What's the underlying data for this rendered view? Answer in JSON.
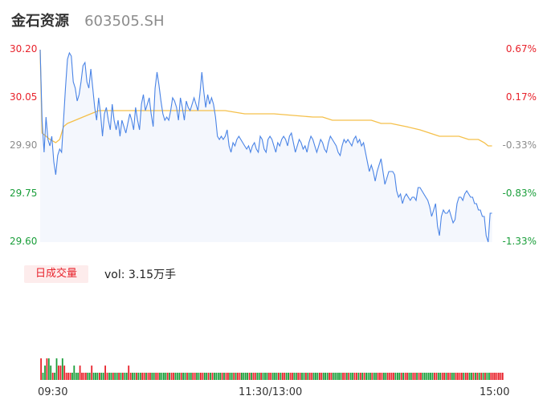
{
  "header": {
    "name": "金石资源",
    "code": "603505.SH"
  },
  "chart_data": {
    "type": "line",
    "price_axis": {
      "ticks": [
        "30.20",
        "30.05",
        "29.90",
        "29.75",
        "29.60"
      ],
      "ylim": [
        29.6,
        30.2
      ],
      "pct_ticks": [
        "0.67%",
        "0.17%",
        "-0.33%",
        "-0.83%",
        "-1.33%"
      ],
      "pct_colors": [
        "#e8222b",
        "#e8222b",
        "#8c8c8c",
        "#1a9e3a",
        "#1a9e3a"
      ],
      "price_colors": [
        "#e8222b",
        "#e8222b",
        "#8c8c8c",
        "#1a9e3a",
        "#1a9e3a"
      ]
    },
    "x_ticks": [
      "09:30",
      "11:30/13:00",
      "15:00"
    ],
    "minutes_total": 240,
    "series": [
      {
        "kind": "price",
        "color": "#4a84e6",
        "points": [
          [
            0,
            30.2
          ],
          [
            1,
            29.98
          ],
          [
            2,
            29.88
          ],
          [
            3,
            29.99
          ],
          [
            4,
            29.92
          ],
          [
            5,
            29.9
          ],
          [
            6,
            29.93
          ],
          [
            7,
            29.85
          ],
          [
            8,
            29.81
          ],
          [
            9,
            29.87
          ],
          [
            10,
            29.89
          ],
          [
            11,
            29.88
          ],
          [
            12,
            29.98
          ],
          [
            13,
            30.08
          ],
          [
            14,
            30.17
          ],
          [
            15,
            30.19
          ],
          [
            16,
            30.18
          ],
          [
            17,
            30.1
          ],
          [
            18,
            30.08
          ],
          [
            19,
            30.04
          ],
          [
            20,
            30.06
          ],
          [
            21,
            30.1
          ],
          [
            22,
            30.15
          ],
          [
            23,
            30.16
          ],
          [
            24,
            30.1
          ],
          [
            25,
            30.08
          ],
          [
            26,
            30.14
          ],
          [
            27,
            30.08
          ],
          [
            28,
            30.02
          ],
          [
            29,
            29.98
          ],
          [
            30,
            30.05
          ],
          [
            31,
            30.0
          ],
          [
            32,
            29.93
          ],
          [
            33,
            30.0
          ],
          [
            34,
            30.02
          ],
          [
            35,
            29.98
          ],
          [
            36,
            29.95
          ],
          [
            37,
            30.03
          ],
          [
            38,
            29.98
          ],
          [
            39,
            29.95
          ],
          [
            40,
            29.98
          ],
          [
            41,
            29.93
          ],
          [
            42,
            29.98
          ],
          [
            43,
            29.96
          ],
          [
            44,
            29.94
          ],
          [
            45,
            29.97
          ],
          [
            46,
            30.0
          ],
          [
            47,
            29.98
          ],
          [
            48,
            29.95
          ],
          [
            49,
            30.02
          ],
          [
            50,
            29.98
          ],
          [
            51,
            29.95
          ],
          [
            52,
            30.03
          ],
          [
            53,
            30.06
          ],
          [
            54,
            30.01
          ],
          [
            55,
            30.03
          ],
          [
            56,
            30.05
          ],
          [
            57,
            30.0
          ],
          [
            58,
            29.96
          ],
          [
            59,
            30.08
          ],
          [
            60,
            30.13
          ],
          [
            61,
            30.09
          ],
          [
            62,
            30.04
          ],
          [
            63,
            30.0
          ],
          [
            64,
            29.98
          ],
          [
            65,
            29.99
          ],
          [
            66,
            29.98
          ],
          [
            67,
            30.01
          ],
          [
            68,
            30.05
          ],
          [
            69,
            30.04
          ],
          [
            70,
            30.02
          ],
          [
            71,
            29.98
          ],
          [
            72,
            30.05
          ],
          [
            73,
            30.02
          ],
          [
            74,
            29.98
          ],
          [
            75,
            30.04
          ],
          [
            76,
            30.02
          ],
          [
            77,
            30.01
          ],
          [
            78,
            30.03
          ],
          [
            79,
            30.05
          ],
          [
            80,
            30.03
          ],
          [
            81,
            30.01
          ],
          [
            82,
            30.06
          ],
          [
            83,
            30.13
          ],
          [
            84,
            30.07
          ],
          [
            85,
            30.02
          ],
          [
            86,
            30.06
          ],
          [
            87,
            30.03
          ],
          [
            88,
            30.05
          ],
          [
            89,
            30.03
          ],
          [
            90,
            29.99
          ],
          [
            91,
            29.93
          ],
          [
            92,
            29.92
          ],
          [
            93,
            29.93
          ],
          [
            94,
            29.92
          ],
          [
            95,
            29.93
          ],
          [
            96,
            29.95
          ],
          [
            97,
            29.9
          ],
          [
            98,
            29.88
          ],
          [
            99,
            29.91
          ],
          [
            100,
            29.9
          ],
          [
            101,
            29.92
          ],
          [
            102,
            29.93
          ],
          [
            103,
            29.92
          ],
          [
            104,
            29.91
          ],
          [
            105,
            29.9
          ],
          [
            106,
            29.89
          ],
          [
            107,
            29.9
          ],
          [
            108,
            29.88
          ],
          [
            109,
            29.9
          ],
          [
            110,
            29.91
          ],
          [
            111,
            29.89
          ],
          [
            112,
            29.88
          ],
          [
            113,
            29.93
          ],
          [
            114,
            29.92
          ],
          [
            115,
            29.89
          ],
          [
            116,
            29.88
          ],
          [
            117,
            29.92
          ],
          [
            118,
            29.93
          ],
          [
            119,
            29.92
          ],
          [
            120,
            29.9
          ],
          [
            121,
            29.88
          ],
          [
            122,
            29.91
          ],
          [
            123,
            29.9
          ],
          [
            124,
            29.92
          ],
          [
            125,
            29.93
          ],
          [
            126,
            29.92
          ],
          [
            127,
            29.9
          ],
          [
            128,
            29.93
          ],
          [
            129,
            29.94
          ],
          [
            130,
            29.91
          ],
          [
            131,
            29.88
          ],
          [
            132,
            29.9
          ],
          [
            133,
            29.92
          ],
          [
            134,
            29.91
          ],
          [
            135,
            29.89
          ],
          [
            136,
            29.9
          ],
          [
            137,
            29.88
          ],
          [
            138,
            29.91
          ],
          [
            139,
            29.93
          ],
          [
            140,
            29.92
          ],
          [
            141,
            29.9
          ],
          [
            142,
            29.88
          ],
          [
            143,
            29.9
          ],
          [
            144,
            29.92
          ],
          [
            145,
            29.91
          ],
          [
            146,
            29.89
          ],
          [
            147,
            29.88
          ],
          [
            148,
            29.91
          ],
          [
            149,
            29.93
          ],
          [
            150,
            29.92
          ],
          [
            151,
            29.91
          ],
          [
            152,
            29.9
          ],
          [
            153,
            29.88
          ],
          [
            154,
            29.87
          ],
          [
            155,
            29.9
          ],
          [
            156,
            29.92
          ],
          [
            157,
            29.91
          ],
          [
            158,
            29.92
          ],
          [
            159,
            29.91
          ],
          [
            160,
            29.9
          ],
          [
            161,
            29.92
          ],
          [
            162,
            29.93
          ],
          [
            163,
            29.91
          ],
          [
            164,
            29.92
          ],
          [
            165,
            29.9
          ],
          [
            166,
            29.91
          ],
          [
            167,
            29.88
          ],
          [
            168,
            29.85
          ],
          [
            169,
            29.82
          ],
          [
            170,
            29.84
          ],
          [
            171,
            29.82
          ],
          [
            172,
            29.79
          ],
          [
            173,
            29.82
          ],
          [
            174,
            29.84
          ],
          [
            175,
            29.86
          ],
          [
            176,
            29.82
          ],
          [
            177,
            29.78
          ],
          [
            178,
            29.8
          ],
          [
            179,
            29.82
          ],
          [
            180,
            29.82
          ],
          [
            181,
            29.82
          ],
          [
            182,
            29.81
          ],
          [
            183,
            29.76
          ],
          [
            184,
            29.74
          ],
          [
            185,
            29.75
          ],
          [
            186,
            29.72
          ],
          [
            187,
            29.74
          ],
          [
            188,
            29.75
          ],
          [
            189,
            29.74
          ],
          [
            190,
            29.73
          ],
          [
            191,
            29.74
          ],
          [
            192,
            29.74
          ],
          [
            193,
            29.73
          ],
          [
            194,
            29.77
          ],
          [
            195,
            29.77
          ],
          [
            196,
            29.76
          ],
          [
            197,
            29.75
          ],
          [
            198,
            29.74
          ],
          [
            199,
            29.73
          ],
          [
            200,
            29.71
          ],
          [
            201,
            29.68
          ],
          [
            202,
            29.7
          ],
          [
            203,
            29.72
          ],
          [
            204,
            29.65
          ],
          [
            205,
            29.62
          ],
          [
            206,
            29.68
          ],
          [
            207,
            29.7
          ],
          [
            208,
            29.69
          ],
          [
            209,
            29.69
          ],
          [
            210,
            29.7
          ],
          [
            211,
            29.68
          ],
          [
            212,
            29.66
          ],
          [
            213,
            29.67
          ],
          [
            214,
            29.72
          ],
          [
            215,
            29.74
          ],
          [
            216,
            29.74
          ],
          [
            217,
            29.73
          ],
          [
            218,
            29.75
          ],
          [
            219,
            29.76
          ],
          [
            220,
            29.75
          ],
          [
            221,
            29.74
          ],
          [
            222,
            29.74
          ],
          [
            223,
            29.72
          ],
          [
            224,
            29.72
          ],
          [
            225,
            29.7
          ],
          [
            226,
            29.7
          ],
          [
            227,
            29.68
          ],
          [
            228,
            29.68
          ],
          [
            229,
            29.62
          ],
          [
            230,
            29.6
          ],
          [
            231,
            29.69
          ],
          [
            232,
            29.69
          ]
        ]
      },
      {
        "kind": "average",
        "color": "#f5c04a",
        "points": [
          [
            0,
            30.2
          ],
          [
            1,
            29.94
          ],
          [
            3,
            29.93
          ],
          [
            5,
            29.92
          ],
          [
            8,
            29.91
          ],
          [
            10,
            29.92
          ],
          [
            12,
            29.96
          ],
          [
            14,
            29.97
          ],
          [
            18,
            29.98
          ],
          [
            22,
            29.99
          ],
          [
            26,
            30.0
          ],
          [
            30,
            30.01
          ],
          [
            60,
            30.01
          ],
          [
            95,
            30.01
          ],
          [
            105,
            30.0
          ],
          [
            120,
            30.0
          ],
          [
            140,
            29.99
          ],
          [
            145,
            29.99
          ],
          [
            150,
            29.98
          ],
          [
            170,
            29.98
          ],
          [
            175,
            29.97
          ],
          [
            180,
            29.97
          ],
          [
            188,
            29.96
          ],
          [
            195,
            29.95
          ],
          [
            200,
            29.94
          ],
          [
            205,
            29.93
          ],
          [
            215,
            29.93
          ],
          [
            220,
            29.92
          ],
          [
            225,
            29.92
          ],
          [
            228,
            29.91
          ],
          [
            230,
            29.9
          ],
          [
            232,
            29.9
          ]
        ]
      }
    ],
    "volume": {
      "label": "日成交量",
      "text_prefix": "vol: ",
      "value_text": "3.15万手",
      "bars": [
        3,
        1,
        2,
        3,
        3,
        2,
        1,
        1,
        3,
        2,
        2,
        3,
        2,
        1,
        1,
        1,
        1,
        2,
        1,
        1,
        2,
        1,
        1,
        1,
        1,
        1,
        2,
        1,
        1,
        1,
        1,
        1,
        1,
        2,
        1,
        1,
        1,
        1,
        1,
        1,
        1,
        1,
        1,
        1,
        1,
        2,
        1,
        1,
        1,
        1,
        1,
        1,
        1,
        1,
        1,
        1,
        1,
        1,
        1,
        1,
        1,
        1,
        1,
        1,
        1,
        1,
        1,
        1,
        1,
        1,
        1,
        1,
        1,
        1,
        1,
        1,
        1,
        1,
        1,
        1,
        1,
        1,
        1,
        1,
        1,
        1,
        1,
        1,
        1,
        1,
        1,
        1,
        1,
        1,
        1,
        1,
        1,
        1,
        1,
        1,
        1,
        1,
        1,
        1,
        1,
        1,
        1,
        1,
        1,
        1,
        1,
        1,
        1,
        1,
        1,
        1,
        1,
        1,
        1,
        1,
        1,
        1,
        1,
        1,
        1,
        1,
        1,
        1,
        1,
        1,
        1,
        1,
        1,
        1,
        1,
        1,
        1,
        1,
        1,
        1,
        1,
        1,
        1,
        1,
        1,
        1,
        1,
        1,
        1,
        1,
        1,
        1,
        1,
        1,
        1,
        1,
        1,
        1,
        1,
        1,
        1,
        1,
        1,
        1,
        1,
        1,
        1,
        1,
        1,
        1,
        1,
        1,
        1,
        1,
        1,
        1,
        1,
        1,
        1,
        1,
        1,
        1,
        1,
        1,
        1,
        1,
        1,
        1,
        1,
        1,
        1,
        1,
        1,
        1,
        1,
        1,
        1,
        1,
        1,
        1,
        1,
        1,
        1,
        1,
        1,
        1,
        1,
        1,
        1,
        1,
        1,
        1,
        1,
        1,
        1,
        1,
        1,
        1,
        1,
        1,
        1,
        1,
        1,
        1,
        1,
        1,
        1,
        1,
        1,
        1,
        1,
        1,
        1,
        1,
        1,
        1,
        1,
        1
      ]
    }
  }
}
